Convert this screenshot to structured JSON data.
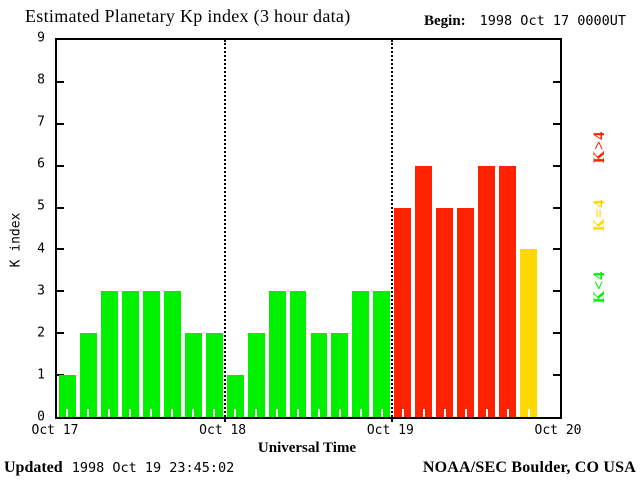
{
  "title": "Estimated Planetary Kp index (3 hour data)",
  "begin": {
    "label": "Begin:",
    "value": "1998 Oct 17 0000UT"
  },
  "legend": {
    "items": [
      {
        "label": "K>4",
        "color": "#ff2200"
      },
      {
        "label": "K=4",
        "color": "#ffd800"
      },
      {
        "label": "K<4",
        "color": "#00f000"
      }
    ]
  },
  "footer": {
    "updated_label": "Updated",
    "updated_value": "1998 Oct 19 23:45:02",
    "credit": "NOAA/SEC Boulder, CO USA"
  },
  "chart_data": {
    "type": "bar",
    "title": "Estimated Planetary Kp index (3 hour data)",
    "xlabel": "Universal Time",
    "ylabel": "K index",
    "ylim": [
      0,
      9
    ],
    "yticks": [
      0,
      1,
      2,
      3,
      4,
      5,
      6,
      7,
      8,
      9
    ],
    "x_day_labels": [
      "Oct 17",
      "Oct 18",
      "Oct 19",
      "Oct 20"
    ],
    "hours_per_bin": 3,
    "bins_per_day": 8,
    "values": [
      1,
      2,
      3,
      3,
      3,
      3,
      2,
      2,
      1,
      2,
      3,
      3,
      2,
      2,
      3,
      3,
      5,
      6,
      5,
      5,
      6,
      6,
      4,
      null
    ],
    "colors": {
      "below_4": "#00f000",
      "equal_4": "#ffd800",
      "above_4": "#ff2200"
    },
    "grid": "dotted vertical lines at day boundaries",
    "legend_position": "right, rotated"
  }
}
